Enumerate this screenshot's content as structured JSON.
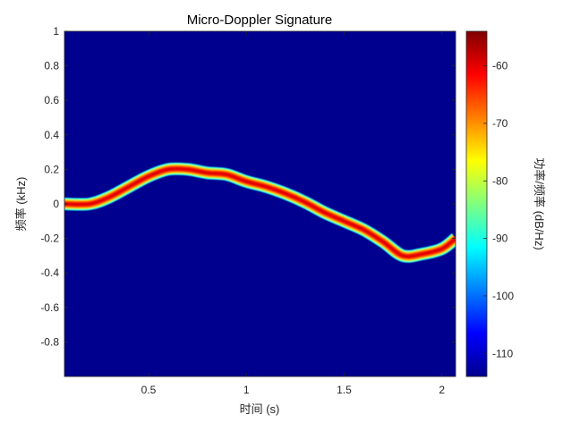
{
  "chart_data": {
    "type": "heatmap",
    "title": "Micro-Doppler Signature",
    "xlabel": "时间 (s)",
    "ylabel": "频率 (kHz)",
    "colorbar_label": "功率/频率 (dB/Hz)",
    "colormap": "jet",
    "xlim": [
      0.07,
      2.07
    ],
    "ylim": [
      -1.0,
      1.0
    ],
    "clim": [
      -114,
      -54
    ],
    "x_ticks": [
      0.5,
      1,
      1.5,
      2
    ],
    "x_tick_labels": [
      "0.5",
      "1",
      "1.5",
      "2"
    ],
    "y_ticks": [
      1,
      0.8,
      0.6,
      0.4,
      0.2,
      0,
      -0.2,
      -0.4,
      -0.6,
      -0.8
    ],
    "y_tick_labels": [
      "1",
      "0.8",
      "0.6",
      "0.4",
      "0.2",
      "0",
      "-0.2",
      "-0.4",
      "-0.6",
      "-0.8"
    ],
    "colorbar_ticks": [
      -60,
      -70,
      -80,
      -90,
      -100,
      -110
    ],
    "colorbar_tick_labels": [
      "-60",
      "-70",
      "-80",
      "-90",
      "-100",
      "-110"
    ],
    "background_level_db": -114,
    "series": [
      {
        "name": "",
        "level_db": -56,
        "x": [
          0.07,
          0.07,
          2.07
        ],
        "y": [
          0,
          0,
          0
        ]
      },
      {
        "name": "",
        "level_db": -60,
        "x": [
          0.07,
          0.2,
          0.3,
          0.4,
          0.5,
          0.6,
          0.7,
          0.8,
          0.9,
          1.0,
          1.1,
          1.2,
          1.3,
          1.4,
          1.5,
          1.6,
          1.7,
          1.8,
          1.9,
          2.0,
          2.07
        ],
        "y": [
          0.0,
          0.0,
          0.04,
          0.1,
          0.16,
          0.2,
          0.2,
          0.18,
          0.17,
          0.13,
          0.1,
          0.06,
          0.01,
          -0.05,
          -0.1,
          -0.15,
          -0.22,
          -0.3,
          -0.29,
          -0.26,
          -0.2
        ]
      }
    ]
  }
}
